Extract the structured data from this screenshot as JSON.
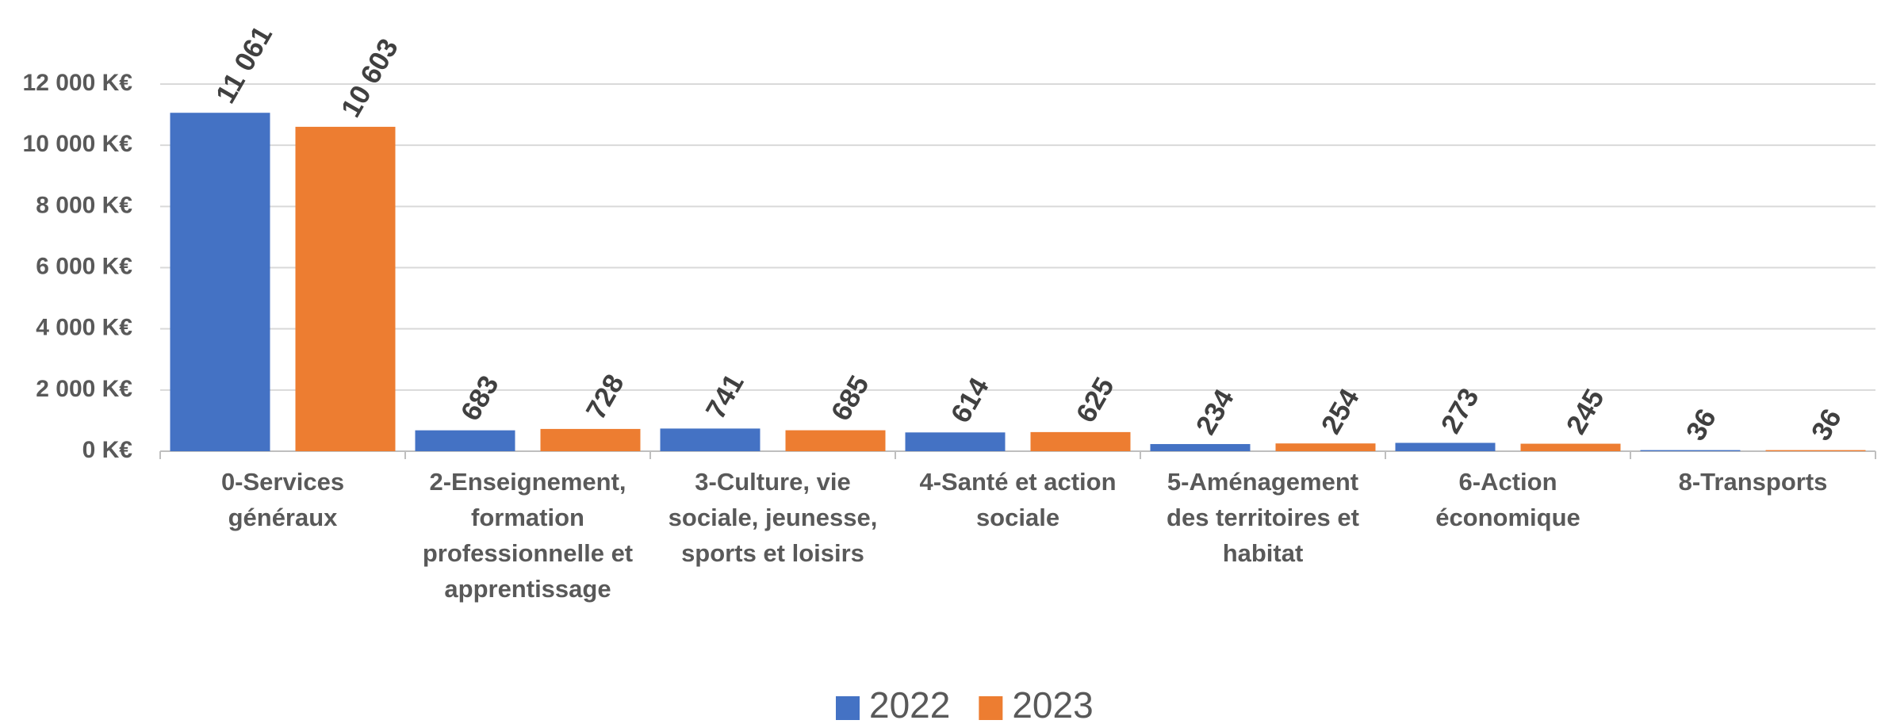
{
  "chart_data": {
    "type": "bar",
    "categories": [
      "0-Services généraux",
      "2-Enseignement, formation professionnelle et apprentissage",
      "3-Culture, vie sociale, jeunesse, sports et loisirs",
      "4-Santé et action sociale",
      "5-Aménagement des territoires et habitat",
      "6-Action économique",
      "8-Transports"
    ],
    "series": [
      {
        "name": "2022",
        "color": "#4472c4",
        "values": [
          11061,
          683,
          741,
          614,
          234,
          273,
          36
        ],
        "value_labels": [
          "11 061",
          "683",
          "741",
          "614",
          "234",
          "273",
          "36"
        ]
      },
      {
        "name": "2023",
        "color": "#ed7d31",
        "values": [
          10603,
          728,
          685,
          625,
          254,
          245,
          36
        ],
        "value_labels": [
          "10 603",
          "728",
          "685",
          "625",
          "254",
          "245",
          "36"
        ]
      }
    ],
    "ylim": [
      0,
      12000
    ],
    "yticks": [
      {
        "value": 0,
        "label": "0 K€"
      },
      {
        "value": 2000,
        "label": "2 000 K€"
      },
      {
        "value": 4000,
        "label": "4 000 K€"
      },
      {
        "value": 6000,
        "label": "6 000 K€"
      },
      {
        "value": 8000,
        "label": "8 000 K€"
      },
      {
        "value": 10000,
        "label": "10 000 K€"
      },
      {
        "value": 12000,
        "label": "12 000 K€"
      }
    ],
    "grid": true,
    "legend": "bottom"
  }
}
